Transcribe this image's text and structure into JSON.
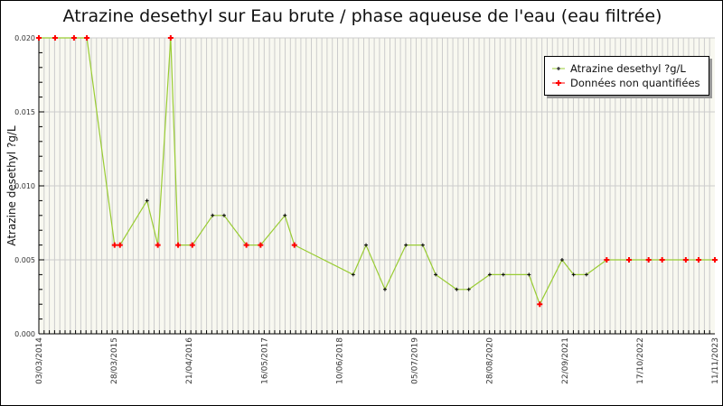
{
  "chart_data": {
    "type": "line",
    "title": "Atrazine desethyl sur Eau brute / phase aqueuse de l'eau (eau filtrée)",
    "xlabel": "",
    "ylabel": "Atrazine desethyl ?g/L",
    "ylim": [
      0,
      0.02
    ],
    "yticks": [
      "0.000",
      "0.005",
      "0.010",
      "0.015",
      "0.020"
    ],
    "xticks": [
      "03/03/2014",
      "28/03/2015",
      "21/04/2016",
      "16/05/2017",
      "10/06/2018",
      "05/07/2019",
      "28/08/2020",
      "22/09/2021",
      "17/10/2022",
      "11/11/2023"
    ],
    "grid": true,
    "legend_position": "top-right",
    "legend": [
      "Atrazine desethyl ?g/L",
      "Données non quantifiées"
    ],
    "series": [
      {
        "name": "Atrazine desethyl ?g/L",
        "color": "#99cc33",
        "points": [
          {
            "x": 0.0,
            "y": 0.02,
            "nq": true
          },
          {
            "x": 0.024,
            "y": 0.02,
            "nq": true
          },
          {
            "x": 0.052,
            "y": 0.02,
            "nq": true
          },
          {
            "x": 0.071,
            "y": 0.02,
            "nq": true
          },
          {
            "x": 0.112,
            "y": 0.006,
            "nq": true
          },
          {
            "x": 0.12,
            "y": 0.006,
            "nq": true
          },
          {
            "x": 0.16,
            "y": 0.009,
            "nq": false
          },
          {
            "x": 0.176,
            "y": 0.006,
            "nq": true
          },
          {
            "x": 0.195,
            "y": 0.02,
            "nq": true
          },
          {
            "x": 0.206,
            "y": 0.006,
            "nq": true
          },
          {
            "x": 0.227,
            "y": 0.006,
            "nq": true
          },
          {
            "x": 0.257,
            "y": 0.008,
            "nq": false
          },
          {
            "x": 0.274,
            "y": 0.008,
            "nq": false
          },
          {
            "x": 0.307,
            "y": 0.006,
            "nq": true
          },
          {
            "x": 0.328,
            "y": 0.006,
            "nq": true
          },
          {
            "x": 0.364,
            "y": 0.008,
            "nq": false
          },
          {
            "x": 0.378,
            "y": 0.006,
            "nq": true
          },
          {
            "x": 0.465,
            "y": 0.004,
            "nq": false
          },
          {
            "x": 0.484,
            "y": 0.006,
            "nq": false
          },
          {
            "x": 0.512,
            "y": 0.003,
            "nq": false
          },
          {
            "x": 0.543,
            "y": 0.006,
            "nq": false
          },
          {
            "x": 0.568,
            "y": 0.006,
            "nq": false
          },
          {
            "x": 0.587,
            "y": 0.004,
            "nq": false
          },
          {
            "x": 0.618,
            "y": 0.003,
            "nq": false
          },
          {
            "x": 0.636,
            "y": 0.003,
            "nq": false
          },
          {
            "x": 0.667,
            "y": 0.004,
            "nq": false
          },
          {
            "x": 0.687,
            "y": 0.004,
            "nq": false
          },
          {
            "x": 0.725,
            "y": 0.004,
            "nq": false
          },
          {
            "x": 0.741,
            "y": 0.002,
            "nq": true
          },
          {
            "x": 0.774,
            "y": 0.005,
            "nq": false
          },
          {
            "x": 0.791,
            "y": 0.004,
            "nq": false
          },
          {
            "x": 0.81,
            "y": 0.004,
            "nq": false
          },
          {
            "x": 0.84,
            "y": 0.005,
            "nq": true
          },
          {
            "x": 0.873,
            "y": 0.005,
            "nq": true
          },
          {
            "x": 0.902,
            "y": 0.005,
            "nq": true
          },
          {
            "x": 0.922,
            "y": 0.005,
            "nq": true
          },
          {
            "x": 0.957,
            "y": 0.005,
            "nq": true
          },
          {
            "x": 0.976,
            "y": 0.005,
            "nq": true
          },
          {
            "x": 1.0,
            "y": 0.005,
            "nq": true
          }
        ]
      }
    ],
    "colors": {
      "line": "#99cc33",
      "quantified_marker": "#000000",
      "non_quantified_marker": "#ff0000",
      "plot_bg": "#f8f8f0",
      "grid": "#cccccc"
    }
  }
}
